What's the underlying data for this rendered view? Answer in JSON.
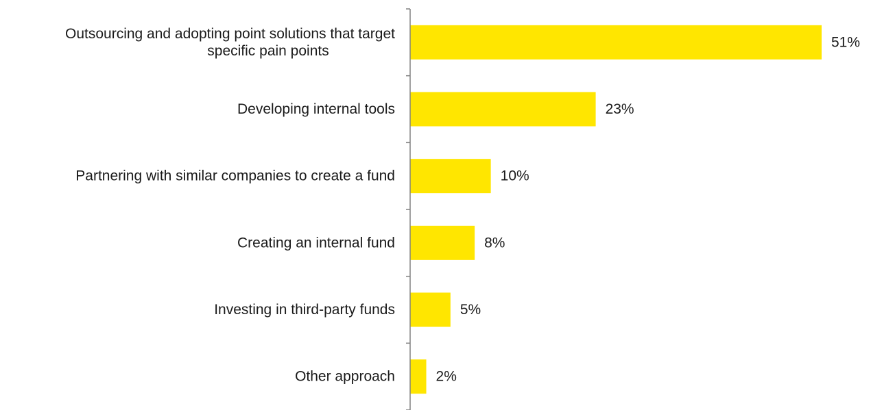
{
  "chart_data": {
    "type": "bar",
    "orientation": "horizontal",
    "categories": [
      [
        "Outsourcing and adopting point solutions that target",
        "specific pain points"
      ],
      [
        "Developing internal tools"
      ],
      [
        "Partnering with similar companies to create a fund"
      ],
      [
        "Creating an internal fund"
      ],
      [
        "Investing in third-party funds"
      ],
      [
        "Other approach"
      ]
    ],
    "values": [
      51,
      23,
      10,
      8,
      5,
      2
    ],
    "value_labels": [
      "51%",
      "23%",
      "10%",
      "8%",
      "5%",
      "2%"
    ],
    "xlim": [
      0,
      51
    ],
    "grid": false,
    "legend": "none",
    "colors": {
      "bar": "#FFE600",
      "axis": "#808080",
      "text": "#1a1a1a"
    }
  }
}
